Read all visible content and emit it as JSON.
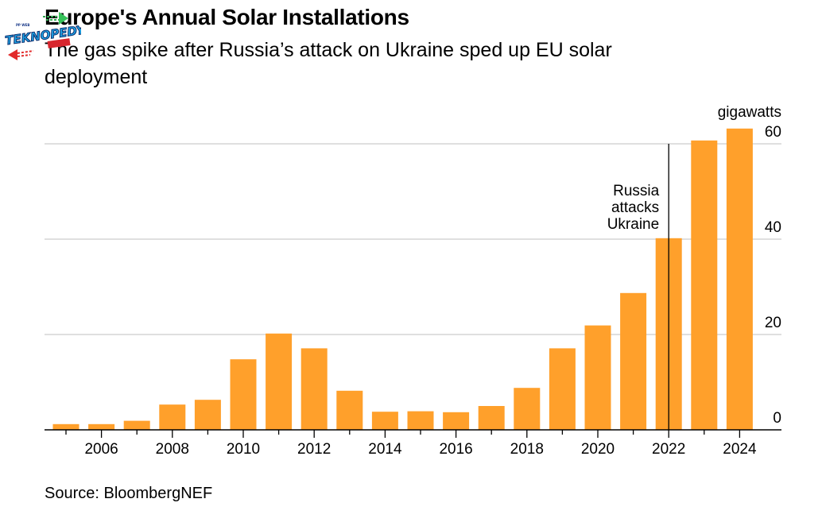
{
  "header": {
    "title": "Europe's Annual Solar Installations",
    "subtitle": "The gas spike after Russia’s attack on Ukraine sped up EU solar deployment"
  },
  "footer": {
    "source": "Source: BloombergNEF"
  },
  "watermark": {
    "text": "TEKNOPEDYA",
    "icon": "teknopedya-logo"
  },
  "colors": {
    "bar": "#FFA02B",
    "grid": "#CCCCCC",
    "axis": "#000000",
    "text": "#000000"
  },
  "chart_data": {
    "type": "bar",
    "title": "Europe's Annual Solar Installations",
    "subtitle": "The gas spike after Russia’s attack on Ukraine sped up EU solar deployment",
    "xlabel": "",
    "ylabel": "gigawatts",
    "unit_label": "gigawatts",
    "categories": [
      2005,
      2006,
      2007,
      2008,
      2009,
      2010,
      2011,
      2012,
      2013,
      2014,
      2015,
      2016,
      2017,
      2018,
      2019,
      2020,
      2021,
      2022,
      2023,
      2024
    ],
    "values": [
      1.2,
      1.2,
      1.9,
      5.3,
      6.3,
      14.8,
      20.2,
      17.1,
      8.2,
      3.8,
      3.9,
      3.7,
      5.0,
      8.8,
      17.1,
      21.9,
      28.7,
      40.2,
      60.7,
      63.2
    ],
    "x_tick_labels": [
      "2006",
      "2008",
      "2010",
      "2012",
      "2014",
      "2016",
      "2018",
      "2020",
      "2022",
      "2024"
    ],
    "y_ticks": [
      0,
      20,
      40,
      60
    ],
    "y_tick_labels": [
      "0",
      "20",
      "40",
      "60"
    ],
    "ylim": [
      0,
      66
    ],
    "y_axis_side": "right",
    "grid": true,
    "legend": "none",
    "annotations": [
      {
        "x": 2022,
        "y_top": 60,
        "type": "vertical-line",
        "text_lines": [
          "Russia",
          "attacks",
          "Ukraine"
        ],
        "text_align": "left-of-line"
      }
    ],
    "source": "BloombergNEF"
  }
}
